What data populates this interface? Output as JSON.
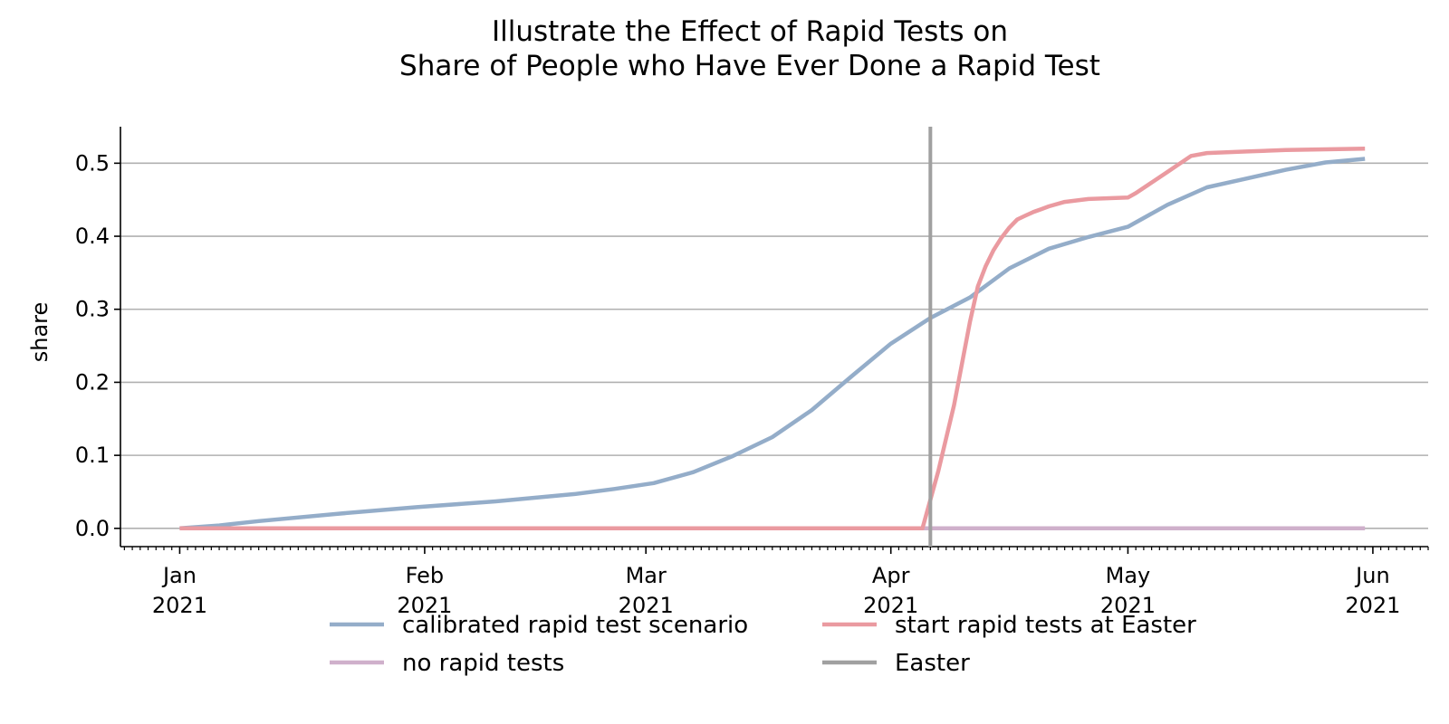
{
  "chart_data": {
    "type": "line",
    "title_lines": [
      "Illustrate the Effect of Rapid Tests on",
      "Share of People who Have Ever Done a Rapid Test"
    ],
    "ylabel": "share",
    "xlabel": "",
    "ylim": [
      -0.025,
      0.55
    ],
    "xlim": [
      -7.5,
      158
    ],
    "yticks": [
      {
        "value": 0.0,
        "label": "0.0"
      },
      {
        "value": 0.1,
        "label": "0.1"
      },
      {
        "value": 0.2,
        "label": "0.2"
      },
      {
        "value": 0.3,
        "label": "0.3"
      },
      {
        "value": 0.4,
        "label": "0.4"
      },
      {
        "value": 0.5,
        "label": "0.5"
      }
    ],
    "xticks": [
      {
        "day": 0,
        "month": "Jan",
        "year": "2021"
      },
      {
        "day": 31,
        "month": "Feb",
        "year": "2021"
      },
      {
        "day": 59,
        "month": "Mar",
        "year": "2021"
      },
      {
        "day": 90,
        "month": "Apr",
        "year": "2021"
      },
      {
        "day": 120,
        "month": "May",
        "year": "2021"
      },
      {
        "day": 151,
        "month": "Jun",
        "year": "2021"
      }
    ],
    "grid": "y",
    "legend_position": "bottom-center",
    "series": [
      {
        "name": "calibrated rapid test scenario",
        "color": "#94adc9",
        "x": [
          0,
          5,
          10,
          20,
          30,
          40,
          50,
          55,
          60,
          65,
          70,
          75,
          80,
          85,
          90,
          95,
          100,
          105,
          110,
          115,
          120,
          125,
          130,
          135,
          140,
          145,
          150
        ],
        "y": [
          0.0,
          0.004,
          0.01,
          0.02,
          0.029,
          0.037,
          0.047,
          0.054,
          0.062,
          0.077,
          0.099,
          0.125,
          0.162,
          0.208,
          0.253,
          0.288,
          0.316,
          0.356,
          0.383,
          0.399,
          0.413,
          0.443,
          0.467,
          0.479,
          0.491,
          0.501,
          0.506
        ]
      },
      {
        "name": "start rapid tests at Easter",
        "color": "#ea9aa0",
        "x": [
          0,
          94,
          96,
          98,
          100,
          101,
          102,
          103,
          104,
          105,
          106,
          107,
          108,
          109,
          110,
          112,
          115,
          120,
          121,
          125,
          128,
          130,
          135,
          140,
          145,
          150
        ],
        "y": [
          0.0,
          0.0,
          0.078,
          0.169,
          0.282,
          0.331,
          0.359,
          0.381,
          0.398,
          0.412,
          0.423,
          0.428,
          0.433,
          0.437,
          0.441,
          0.447,
          0.451,
          0.453,
          0.459,
          0.488,
          0.51,
          0.514,
          0.516,
          0.518,
          0.519,
          0.52
        ]
      },
      {
        "name": "no rapid tests",
        "color": "#cfb0cb",
        "x": [
          0,
          150
        ],
        "y": [
          0.0,
          0.0
        ]
      }
    ],
    "reference_lines": [
      {
        "name": "Easter",
        "orientation": "vertical",
        "day": 95,
        "color": "#a0a0a0"
      }
    ],
    "legend": [
      {
        "label": "calibrated rapid test scenario",
        "color": "#94adc9"
      },
      {
        "label": "start rapid tests at Easter",
        "color": "#ea9aa0"
      },
      {
        "label": "no rapid tests",
        "color": "#cfb0cb"
      },
      {
        "label": "Easter",
        "color": "#a0a0a0"
      }
    ]
  }
}
